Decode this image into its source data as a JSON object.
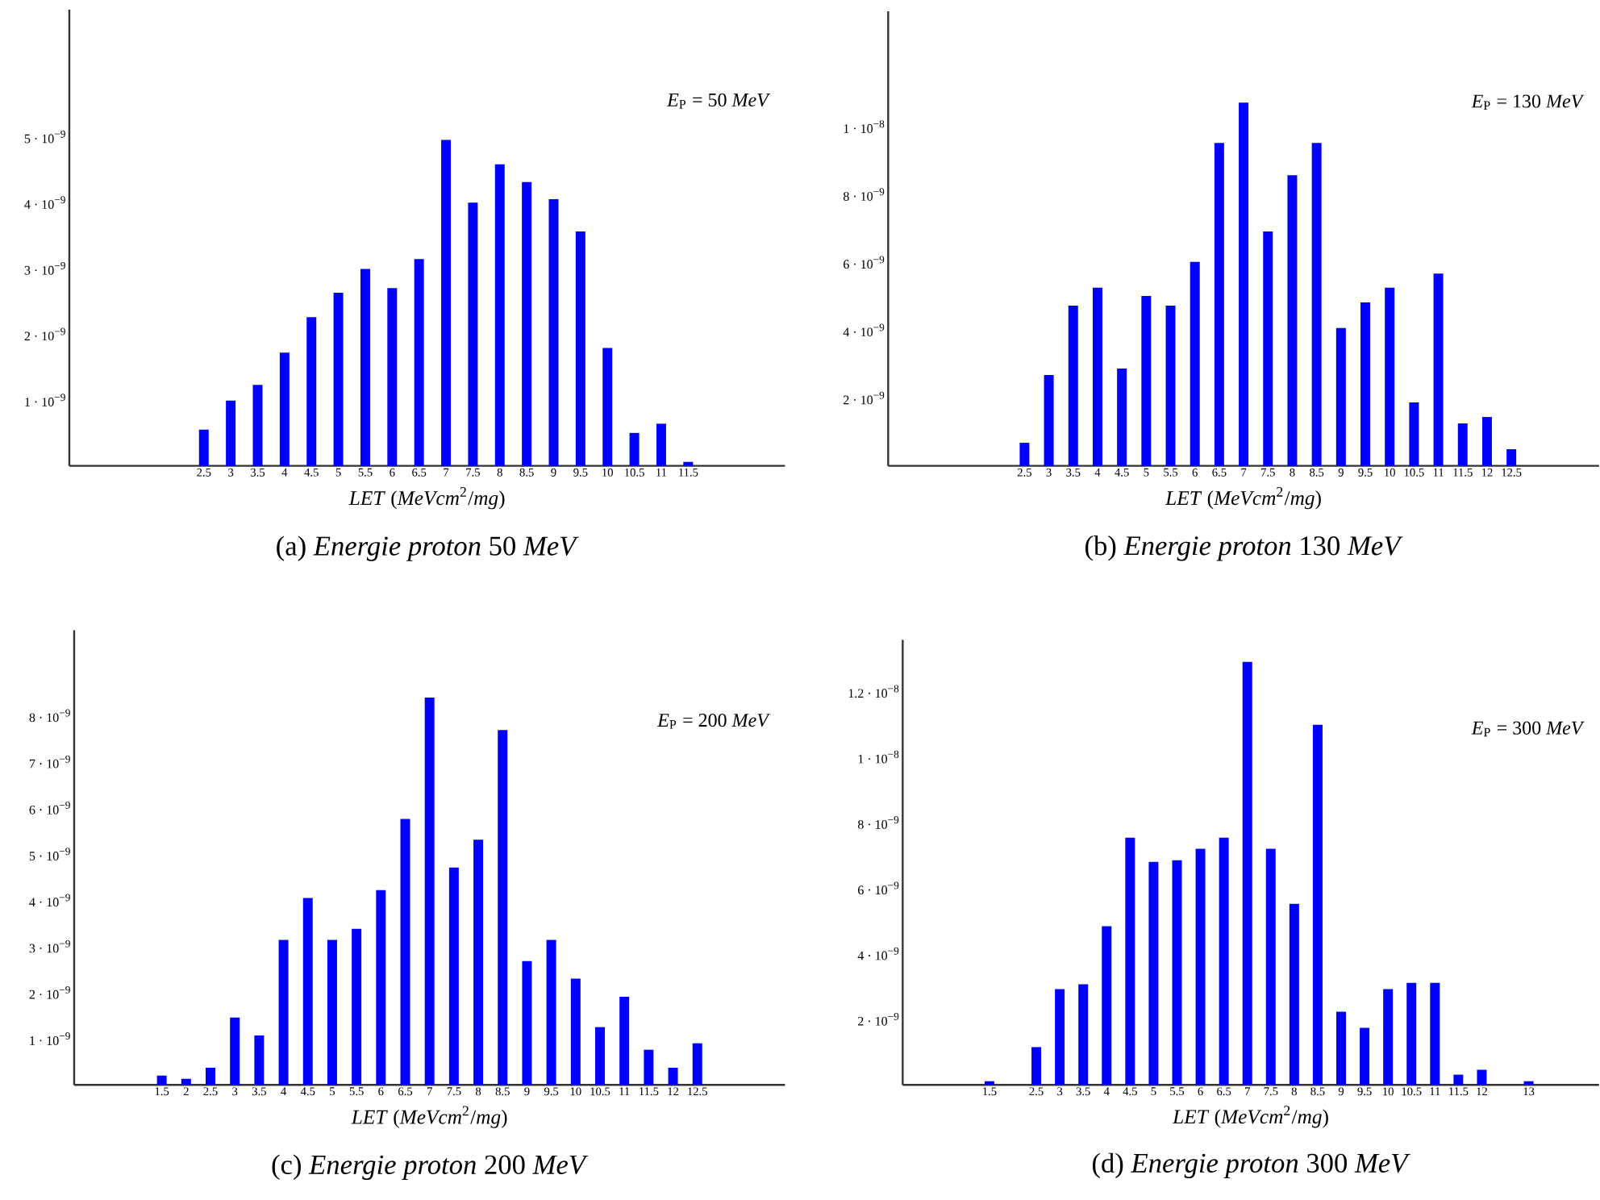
{
  "chart_data": [
    {
      "type": "bar",
      "title": "(a) *Energie proton* 50 *MeV*",
      "xlabel": "*LET* (*MeVcm*$^{2}$/*mg*)",
      "annotations": [
        "*E*$_{P}$ = 50 *MeV*"
      ],
      "color": "#0000ff",
      "x": [
        2.5,
        3,
        3.5,
        4,
        4.5,
        5,
        5.5,
        6,
        6.5,
        7,
        7.5,
        8,
        8.5,
        9,
        9.5,
        10,
        10.5,
        11,
        11.5
      ],
      "values": [
        5.5e-10,
        9.9e-10,
        1.23e-09,
        1.72e-09,
        2.26e-09,
        2.63e-09,
        2.99e-09,
        2.7e-09,
        3.14e-09,
        4.95e-09,
        4e-09,
        4.58e-09,
        4.31e-09,
        4.05e-09,
        3.56e-09,
        1.79e-09,
        5e-10,
        6.4e-10,
        6e-11
      ],
      "xlim": [
        0,
        13.3
      ],
      "ylim": [
        0,
        6.93e-09
      ],
      "xticks": [
        2.5,
        3,
        3.5,
        4,
        4.5,
        5,
        5.5,
        6,
        6.5,
        7,
        7.5,
        8,
        8.5,
        9,
        9.5,
        10,
        10.5,
        11,
        11.5
      ],
      "yticks": [
        {
          "value": 1e-09,
          "label": "1 · 10$^{−9}$"
        },
        {
          "value": 2e-09,
          "label": "2 · 10$^{−9}$"
        },
        {
          "value": 3e-09,
          "label": "3 · 10$^{−9}$"
        },
        {
          "value": 4e-09,
          "label": "4 · 10$^{−9}$"
        },
        {
          "value": 5e-09,
          "label": "5 · 10$^{−9}$"
        }
      ]
    },
    {
      "type": "bar",
      "title": "(b) *Energie proton* 130 *MeV*",
      "xlabel": "*LET* (*MeVcm*$^{2}$/*mg*)",
      "annotations": [
        "*E*$_{P}$ = 130 *MeV*"
      ],
      "color": "#0000ff",
      "x": [
        2.5,
        3,
        3.5,
        4,
        4.5,
        5,
        5.5,
        6,
        6.5,
        7,
        7.5,
        8,
        8.5,
        9,
        9.5,
        10,
        10.5,
        11,
        11.5,
        12,
        12.5
      ],
      "values": [
        6.8e-10,
        2.68e-09,
        4.72e-09,
        5.25e-09,
        2.87e-09,
        5.01e-09,
        4.72e-09,
        6.01e-09,
        9.52e-09,
        1.071e-08,
        6.91e-09,
        8.57e-09,
        9.52e-09,
        4.06e-09,
        4.82e-09,
        5.25e-09,
        1.87e-09,
        5.67e-09,
        1.25e-09,
        1.44e-09,
        4.9e-10
      ],
      "xlim": [
        -0.3,
        14.3
      ],
      "ylim": [
        0,
        1.34e-08
      ],
      "xticks": [
        2.5,
        3,
        3.5,
        4,
        4.5,
        5,
        5.5,
        6,
        6.5,
        7,
        7.5,
        8,
        8.5,
        9,
        9.5,
        10,
        10.5,
        11,
        11.5,
        12,
        12.5
      ],
      "yticks": [
        {
          "value": 2e-09,
          "label": "2 · 10$^{−9}$"
        },
        {
          "value": 4e-09,
          "label": "4 · 10$^{−9}$"
        },
        {
          "value": 6e-09,
          "label": "6 · 10$^{−9}$"
        },
        {
          "value": 8e-09,
          "label": "8 · 10$^{−9}$"
        },
        {
          "value": 1e-08,
          "label": "1 · 10$^{−8}$"
        }
      ]
    },
    {
      "type": "bar",
      "title": "(c) *Energie proton* 200 *MeV*",
      "xlabel": "*LET* (*MeVcm*$^{2}$/*mg*)",
      "annotations": [
        "*E*$_{P}$ = 200 *MeV*"
      ],
      "color": "#0000ff",
      "x": [
        1.5,
        2,
        2.5,
        3,
        3.5,
        4,
        4.5,
        5,
        5.5,
        6,
        6.5,
        7,
        7.5,
        8,
        8.5,
        9,
        9.5,
        10,
        10.5,
        11,
        11.5,
        12,
        12.5
      ],
      "values": [
        2e-10,
        1.3e-10,
        3.7e-10,
        1.46e-09,
        1.07e-09,
        3.14e-09,
        4.05e-09,
        3.14e-09,
        3.38e-09,
        4.22e-09,
        5.76e-09,
        8.39e-09,
        4.71e-09,
        5.31e-09,
        7.69e-09,
        2.68e-09,
        3.14e-09,
        2.3e-09,
        1.25e-09,
        1.91e-09,
        7.6e-10,
        3.7e-10,
        9e-10
      ],
      "xlim": [
        -0.3,
        14.3
      ],
      "ylim": [
        0,
        9.85e-09
      ],
      "xticks": [
        1.5,
        2,
        2.5,
        3,
        3.5,
        4,
        4.5,
        5,
        5.5,
        6,
        6.5,
        7,
        7.5,
        8,
        8.5,
        9,
        9.5,
        10,
        10.5,
        11,
        11.5,
        12,
        12.5
      ],
      "yticks": [
        {
          "value": 1e-09,
          "label": "1 · 10$^{−9}$"
        },
        {
          "value": 2e-09,
          "label": "2 · 10$^{−9}$"
        },
        {
          "value": 3e-09,
          "label": "3 · 10$^{−9}$"
        },
        {
          "value": 4e-09,
          "label": "4 · 10$^{−9}$"
        },
        {
          "value": 5e-09,
          "label": "5 · 10$^{−9}$"
        },
        {
          "value": 6e-09,
          "label": "6 · 10$^{−9}$"
        },
        {
          "value": 7e-09,
          "label": "7 · 10$^{−9}$"
        },
        {
          "value": 8e-09,
          "label": "8 · 10$^{−9}$"
        }
      ]
    },
    {
      "type": "bar",
      "title": "(d) *Energie proton* 300 *MeV*",
      "xlabel": "*LET* (*MeVcm*$^{2}$/*mg*)",
      "annotations": [
        "*E*$_{P}$ = 300 *MeV*"
      ],
      "color": "#0000ff",
      "x": [
        1.5,
        2.5,
        3,
        3.5,
        4,
        4.5,
        5,
        5.5,
        6,
        6.5,
        7,
        7.5,
        8,
        8.5,
        9,
        9.5,
        10,
        10.5,
        11,
        11.5,
        12,
        13
      ],
      "values": [
        1.1e-10,
        1.15e-09,
        2.92e-09,
        3.07e-09,
        4.84e-09,
        7.54e-09,
        6.8e-09,
        6.85e-09,
        7.2e-09,
        7.54e-09,
        1.29e-08,
        7.2e-09,
        5.52e-09,
        1.098e-08,
        2.23e-09,
        1.74e-09,
        2.92e-09,
        3.11e-09,
        3.11e-09,
        3.1e-10,
        4.6e-10,
        1.1e-10
      ],
      "xlim": [
        -0.35,
        14.5
      ],
      "ylim": [
        0,
        1.357e-08
      ],
      "xticks": [
        1.5,
        2.5,
        3,
        3.5,
        4,
        4.5,
        5,
        5.5,
        6,
        6.5,
        7,
        7.5,
        8,
        8.5,
        9,
        9.5,
        10,
        10.5,
        11,
        11.5,
        12,
        13
      ],
      "yticks": [
        {
          "value": 2e-09,
          "label": "2 · 10$^{−9}$"
        },
        {
          "value": 4e-09,
          "label": "4 · 10$^{−9}$"
        },
        {
          "value": 6e-09,
          "label": "6 · 10$^{−9}$"
        },
        {
          "value": 8e-09,
          "label": "8 · 10$^{−9}$"
        },
        {
          "value": 1e-08,
          "label": "1 · 10$^{−8}$"
        },
        {
          "value": 1.2e-08,
          "label": "1.2 · 10$^{−8}$"
        }
      ]
    }
  ]
}
